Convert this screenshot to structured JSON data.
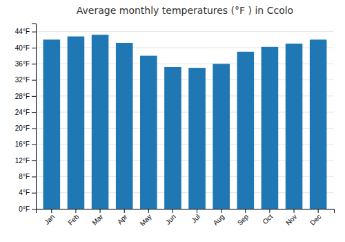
{
  "chart_data": {
    "type": "bar",
    "title": "Average monthly temperatures (°F ) in Ccolo",
    "categories": [
      "Jan",
      "Feb",
      "Mar",
      "Apr",
      "May",
      "Jun",
      "Jul",
      "Aug",
      "Sep",
      "Oct",
      "Nov",
      "Dec"
    ],
    "values": [
      42.0,
      42.8,
      43.2,
      41.2,
      38.0,
      35.2,
      35.0,
      36.0,
      39.0,
      40.2,
      41.0,
      42.0
    ],
    "ylim": [
      0,
      46
    ],
    "yticks": [
      {
        "value": 0,
        "label": "0°F"
      },
      {
        "value": 4,
        "label": "4°F"
      },
      {
        "value": 8,
        "label": "8°F"
      },
      {
        "value": 12,
        "label": "12°F"
      },
      {
        "value": 16,
        "label": "16°F"
      },
      {
        "value": 20,
        "label": "20°F"
      },
      {
        "value": 24,
        "label": "24°F"
      },
      {
        "value": 28,
        "label": "28°F"
      },
      {
        "value": 32,
        "label": "32°F"
      },
      {
        "value": 36,
        "label": "36°F"
      },
      {
        "value": 40,
        "label": "40°F"
      },
      {
        "value": 44,
        "label": "44°F"
      }
    ],
    "grid": true
  }
}
